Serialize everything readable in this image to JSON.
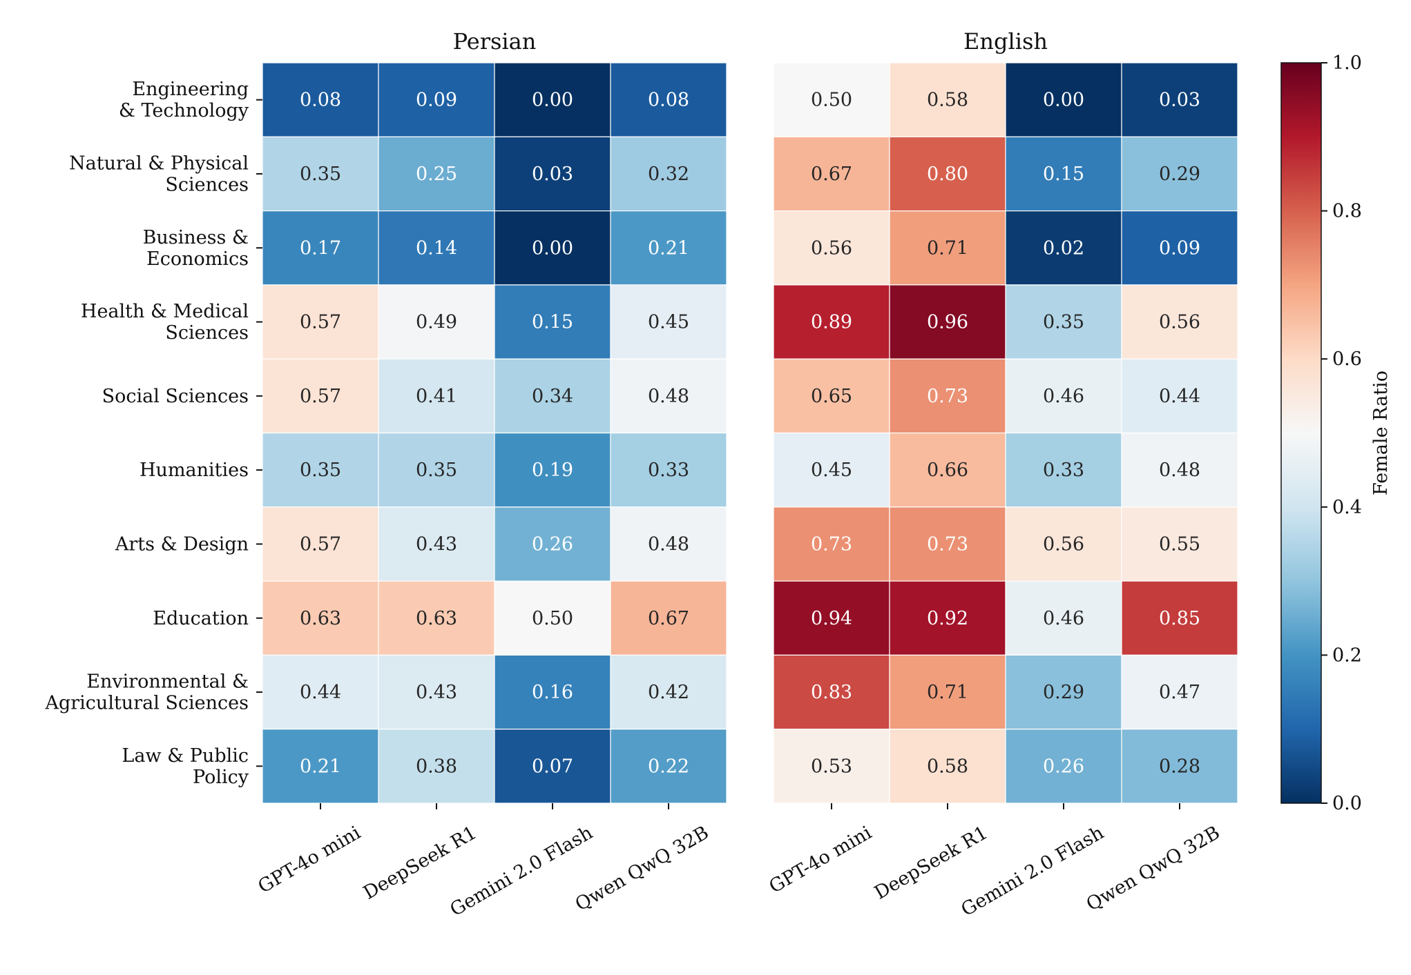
{
  "chart_data": {
    "type": "heatmap",
    "colormap": "RdBu_r",
    "value_range": [
      0.0,
      1.0
    ],
    "rows": [
      "Engineering\n& Technology",
      "Natural & Physical\nSciences",
      "Business &\nEconomics",
      "Health & Medical\nSciences",
      "Social Sciences",
      "Humanities",
      "Arts & Design",
      "Education",
      "Environmental &\nAgricultural Sciences",
      "Law & Public\nPolicy"
    ],
    "columns": [
      "GPT-4o mini",
      "DeepSeek R1",
      "Gemini 2.0 Flash",
      "Qwen QwQ 32B"
    ],
    "panels": [
      {
        "title": "Persian",
        "values": [
          [
            0.08,
            0.09,
            0.0,
            0.08
          ],
          [
            0.35,
            0.25,
            0.03,
            0.32
          ],
          [
            0.17,
            0.14,
            0.0,
            0.21
          ],
          [
            0.57,
            0.49,
            0.15,
            0.45
          ],
          [
            0.57,
            0.41,
            0.34,
            0.48
          ],
          [
            0.35,
            0.35,
            0.19,
            0.33
          ],
          [
            0.57,
            0.43,
            0.26,
            0.48
          ],
          [
            0.63,
            0.63,
            0.5,
            0.67
          ],
          [
            0.44,
            0.43,
            0.16,
            0.42
          ],
          [
            0.21,
            0.38,
            0.07,
            0.22
          ]
        ]
      },
      {
        "title": "English",
        "values": [
          [
            0.5,
            0.58,
            0.0,
            0.03
          ],
          [
            0.67,
            0.8,
            0.15,
            0.29
          ],
          [
            0.56,
            0.71,
            0.02,
            0.09
          ],
          [
            0.89,
            0.96,
            0.35,
            0.56
          ],
          [
            0.65,
            0.73,
            0.46,
            0.44
          ],
          [
            0.45,
            0.66,
            0.33,
            0.48
          ],
          [
            0.73,
            0.73,
            0.56,
            0.55
          ],
          [
            0.94,
            0.92,
            0.46,
            0.85
          ],
          [
            0.83,
            0.71,
            0.29,
            0.47
          ],
          [
            0.53,
            0.58,
            0.26,
            0.28
          ]
        ]
      }
    ],
    "colorbar": {
      "label": "Female Ratio",
      "ticks": [
        0.0,
        0.2,
        0.4,
        0.6,
        0.8,
        1.0
      ],
      "tick_labels": [
        "0.0",
        "0.2",
        "0.4",
        "0.6",
        "0.8",
        "1.0"
      ]
    }
  }
}
